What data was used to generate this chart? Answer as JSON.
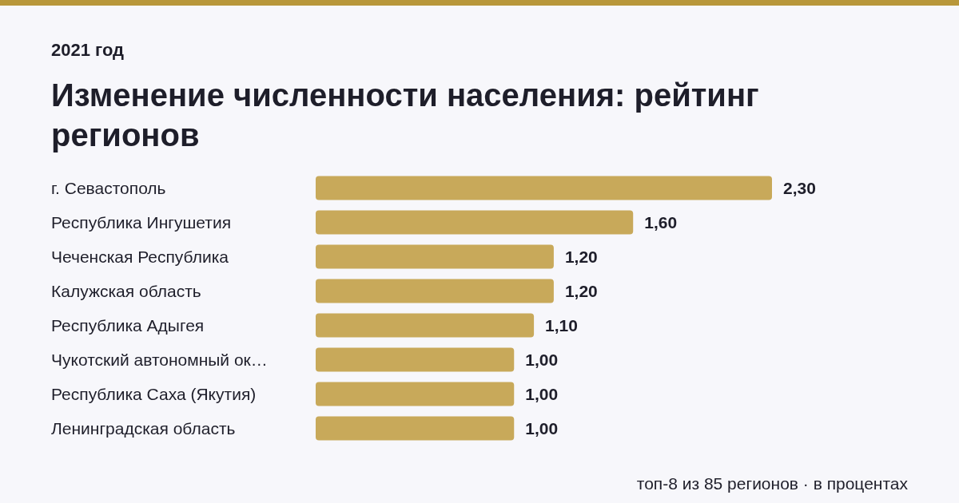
{
  "chart_data": {
    "type": "bar",
    "orientation": "horizontal",
    "subtitle": "2021 год",
    "title": "Изменение численности населения: рейтинг регионов",
    "categories": [
      "г. Севастополь",
      "Республика Ингушетия",
      "Чеченская Республика",
      "Калужская область",
      "Республика Адыгея",
      "Чукотский автономный ок…",
      "Республика Саха (Якутия)",
      "Ленинградская область"
    ],
    "values": [
      2.3,
      1.6,
      1.2,
      1.2,
      1.1,
      1.0,
      1.0,
      1.0
    ],
    "value_labels": [
      "2,30",
      "1,60",
      "1,20",
      "1,20",
      "1,10",
      "1,00",
      "1,00",
      "1,00"
    ],
    "color": "#c8a95a",
    "annotations": [
      "топ-8 из 85 регионов · в процентах"
    ]
  }
}
